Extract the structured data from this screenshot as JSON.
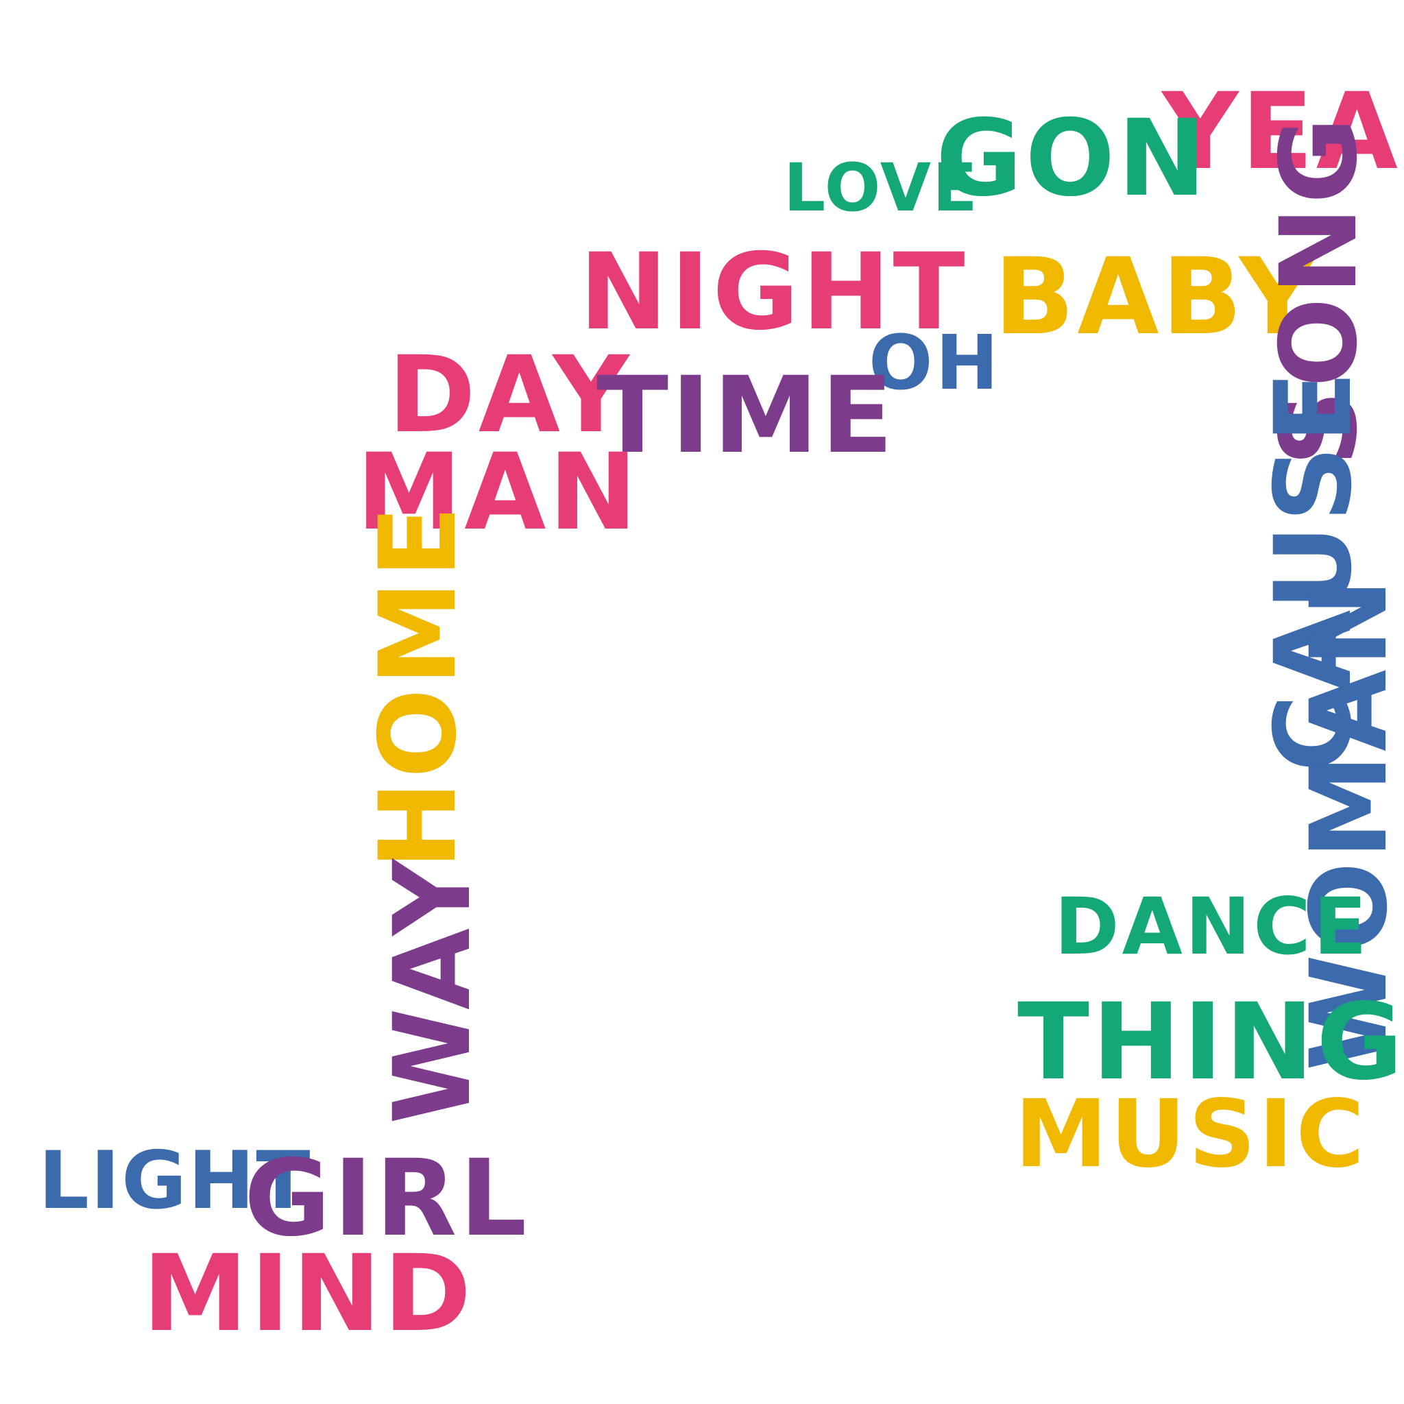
{
  "words": {
    "yeah": "YEAH",
    "gon": "GON",
    "love": "LOVE",
    "night": "NIGHT",
    "baby": "BABY",
    "song": "SONG",
    "oh": "OH",
    "day": "DAY",
    "time": "TIME",
    "man": "MAN",
    "cause": "CAUSE",
    "home": "HOME",
    "woman": "WOMAN",
    "dance": "DANCE",
    "way": "WAY",
    "thing": "THING",
    "music": "MUSIC",
    "light": "LIGHT",
    "girl": "GIRL",
    "mind": "MIND"
  },
  "colors": {
    "pink": "#e73d76",
    "purple": "#7c3b8b",
    "green": "#14a777",
    "yellow": "#f1b800",
    "blue": "#3b6aad",
    "background": "#ffffff"
  }
}
